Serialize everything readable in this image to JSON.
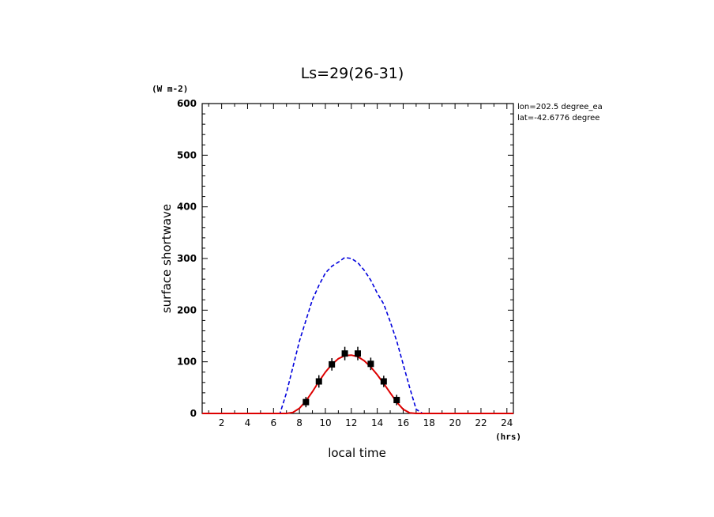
{
  "chart_data": {
    "type": "line",
    "title": "Ls=29(26-31)",
    "xlabel": "local time",
    "ylabel": "surface shortwave",
    "x_unit": "(hrs)",
    "y_unit": "(W m-2)",
    "xlim": [
      0.5,
      24.5
    ],
    "ylim": [
      0,
      600
    ],
    "x_ticks": [
      2,
      4,
      6,
      8,
      10,
      12,
      14,
      16,
      18,
      20,
      22,
      24
    ],
    "x_tick_labels": [
      "2",
      "4",
      "6",
      "8",
      "10",
      "12",
      "14",
      "16",
      "18",
      "20",
      "22",
      "24"
    ],
    "y_ticks": [
      0,
      100,
      200,
      300,
      400,
      500,
      600
    ],
    "y_tick_labels": [
      "0",
      "100",
      "200",
      "300",
      "400",
      "500",
      "600"
    ],
    "annotations": [
      "lon=202.5 degree_ea",
      "lat=-42.6776 degree"
    ],
    "grid": false,
    "series": [
      {
        "style": "dashed",
        "color": "#0000dd",
        "x": [
          0.5,
          1.5,
          2.5,
          3.5,
          4.5,
          5.5,
          6.5,
          7.0,
          7.5,
          8.0,
          8.5,
          9.0,
          9.5,
          10.0,
          10.5,
          11.0,
          11.5,
          12.0,
          12.5,
          13.0,
          13.5,
          14.0,
          14.5,
          15.0,
          15.5,
          16.0,
          16.5,
          17.0,
          17.5,
          18.5,
          19.5,
          20.5,
          21.5,
          22.5,
          23.5,
          24.5
        ],
        "y": [
          0,
          0,
          0,
          0,
          0,
          0,
          0,
          40,
          90,
          140,
          180,
          220,
          248,
          272,
          285,
          293,
          302,
          300,
          292,
          277,
          258,
          233,
          212,
          178,
          140,
          95,
          50,
          8,
          0,
          0,
          0,
          0,
          0,
          0,
          0,
          0
        ]
      },
      {
        "style": "solid",
        "color": "#dd0000",
        "x": [
          0.5,
          1.5,
          2.5,
          3.5,
          4.5,
          5.5,
          6.5,
          7.0,
          7.5,
          8.0,
          8.5,
          9.0,
          9.5,
          10.0,
          10.5,
          11.0,
          11.5,
          12.0,
          12.5,
          13.0,
          13.5,
          14.0,
          14.5,
          15.0,
          15.5,
          16.0,
          16.5,
          17.0,
          17.5,
          18.5,
          19.5,
          20.5,
          21.5,
          22.5,
          23.5,
          24.5
        ],
        "y": [
          0,
          0,
          0,
          0,
          0,
          0,
          0,
          0,
          2,
          10,
          24,
          42,
          62,
          80,
          95,
          106,
          112,
          113,
          110,
          102,
          90,
          75,
          58,
          40,
          22,
          8,
          1,
          0,
          0,
          0,
          0,
          0,
          0,
          0,
          0,
          0
        ]
      },
      {
        "style": "markers",
        "color": "#000000",
        "x": [
          8.5,
          9.5,
          10.5,
          11.5,
          12.5,
          13.5,
          14.5,
          15.5
        ],
        "y": [
          22,
          62,
          95,
          116,
          116,
          96,
          62,
          26
        ],
        "error": [
          7,
          9,
          9,
          10,
          10,
          9,
          8,
          7
        ]
      }
    ]
  }
}
